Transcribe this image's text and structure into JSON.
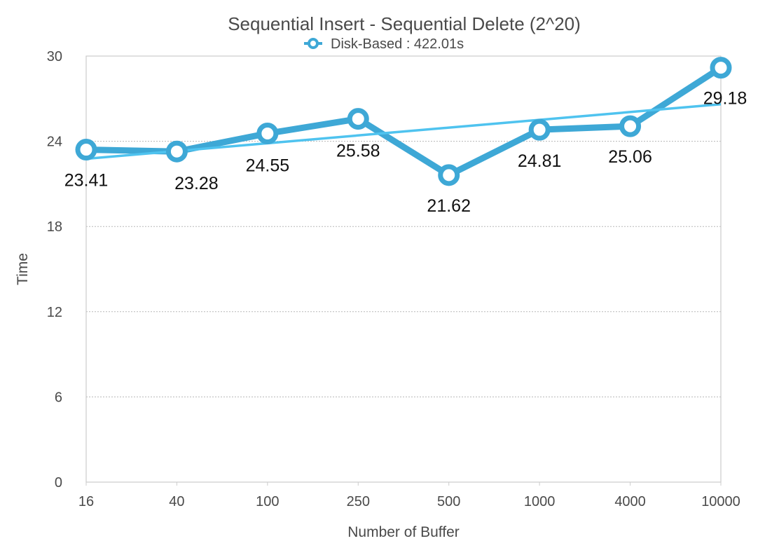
{
  "chart_data": {
    "type": "line",
    "title": "Sequential Insert - Sequential Delete (2^20)",
    "xlabel": "Number of Buffer",
    "ylabel": "Time",
    "categories": [
      "16",
      "40",
      "100",
      "250",
      "500",
      "1000",
      "4000",
      "10000"
    ],
    "series": [
      {
        "name": "Disk-Based : 422.01s",
        "values": [
          23.41,
          23.28,
          24.55,
          25.58,
          21.62,
          24.81,
          25.06,
          29.18
        ],
        "data_labels": [
          "23.41",
          "23.28",
          "24.55",
          "25.58",
          "21.62",
          "24.81",
          "25.06",
          "29.18"
        ],
        "color": "#3ea8d6",
        "trendline": true,
        "trendline_color": "#4fc3ef"
      }
    ],
    "ylim": [
      0,
      30
    ],
    "yticks": [
      0,
      6,
      12,
      18,
      24,
      30
    ],
    "ytick_labels": [
      "0",
      "6",
      "12",
      "18",
      "24",
      "30"
    ],
    "grid": true,
    "legend_position": "top-center"
  }
}
